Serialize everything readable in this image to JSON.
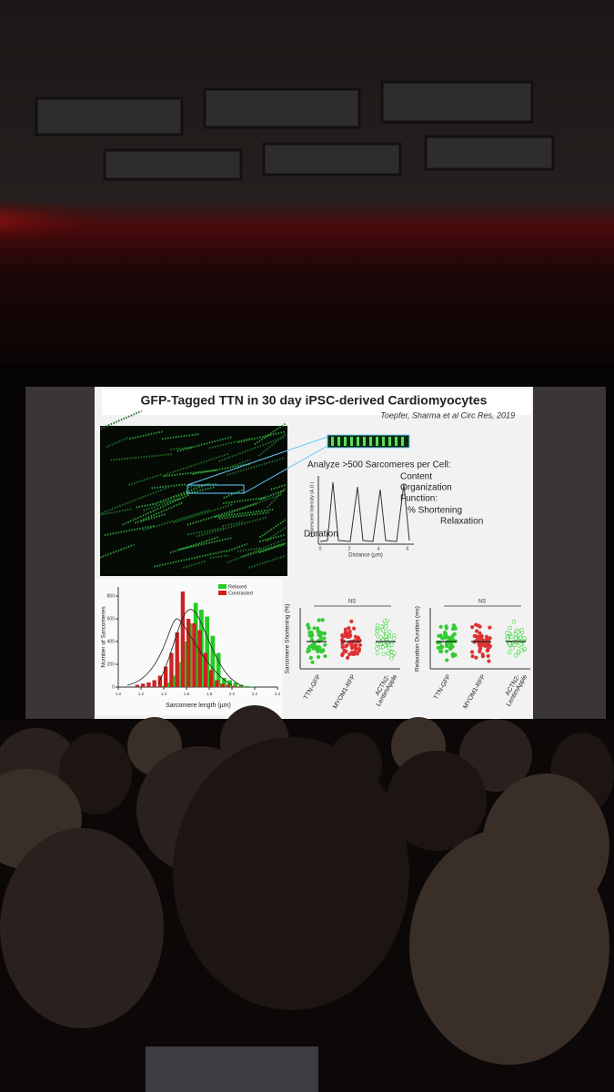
{
  "slide": {
    "title": "GFP-Tagged TTN  in 30 day iPSC-derived Cardiomyocytes",
    "citation": "Toepfer, Sharma et al Circ Res, 2019",
    "analysis": {
      "heading": "Analyze >500 Sarcomeres per Cell:",
      "items": [
        "Content",
        "Organization",
        "Function:",
        "% Shortening",
        "Relaxation",
        "Duration"
      ]
    },
    "profile": {
      "ylabel": "Fluorescent Intensity (A.U.)",
      "xlabel": "Distance (µm)",
      "xticks": [
        0,
        2,
        4,
        6
      ]
    },
    "histogram": {
      "type": "histogram",
      "ylabel": "Number of Sarcomeres",
      "xlabel": "Sarcomere length (µm)",
      "bins": [
        1.15,
        1.2,
        1.25,
        1.3,
        1.35,
        1.4,
        1.45,
        1.5,
        1.55,
        1.6,
        1.65,
        1.7,
        1.75,
        1.8,
        1.85,
        1.9,
        1.95,
        2.0,
        2.05,
        2.1,
        2.15,
        2.2,
        2.25
      ],
      "series": [
        {
          "name": "Relaxed",
          "color": "#22cc22",
          "values": [
            0,
            0,
            0,
            0,
            10,
            40,
            100,
            220,
            400,
            560,
            740,
            680,
            620,
            450,
            300,
            80,
            60,
            40,
            20,
            10,
            5,
            0
          ]
        },
        {
          "name": "Contracted",
          "color": "#cc2222",
          "values": [
            20,
            30,
            40,
            60,
            100,
            180,
            300,
            480,
            840,
            600,
            560,
            500,
            300,
            150,
            60,
            30,
            20,
            10,
            5,
            0,
            0,
            0
          ]
        }
      ],
      "xlim": [
        1.0,
        2.4
      ],
      "xticks": [
        {
          "value": 1,
          "label": "1.0"
        },
        1.2,
        1.4,
        1.6,
        1.8,
        {
          "value": 2,
          "label": "2.0"
        },
        2.2,
        2.4
      ],
      "ylim": [
        0,
        880
      ],
      "yticks": [
        0,
        200,
        400,
        600,
        800
      ]
    },
    "scatters": [
      {
        "ylabel": "Sarcomere Shortening (%)",
        "note": "NS",
        "categories": [
          "TTN-GFP",
          "MYOM1-RFP",
          [
            "ACTN2-",
            "LentimApple"
          ]
        ]
      },
      {
        "ylabel": "Relaxation Duration (ms)",
        "note": "NS",
        "categories": [
          "TTN-GFP",
          "MYOM1-RFP",
          [
            "ACTN2-",
            "LentimApple"
          ]
        ]
      }
    ]
  }
}
